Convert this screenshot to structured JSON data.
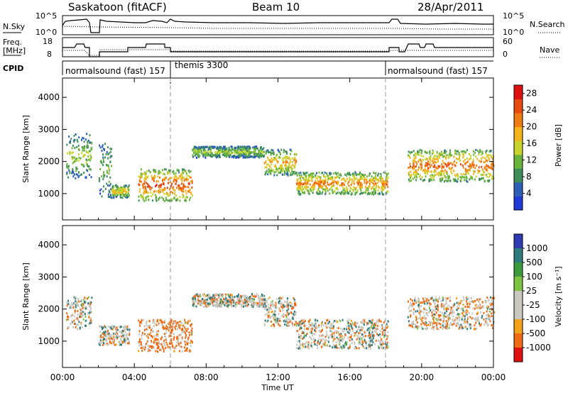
{
  "header": {
    "radar": "Saskatoon (fitACF)",
    "beam": "Beam 10",
    "date": "28/Apr/2011"
  },
  "noise_panel": {
    "left_label": "N.Sky",
    "right_label": "N.Search",
    "left_ticks": [
      "10^5",
      "10^0"
    ],
    "right_ticks": [
      "10^5",
      "10^0"
    ]
  },
  "freq_panel": {
    "left_label_1": "Freq.",
    "left_label_2": "[MHz]",
    "right_label": "Nave",
    "left_ticks": [
      "18",
      "8"
    ],
    "right_ticks": [
      "60",
      "0"
    ]
  },
  "cpid_panel": {
    "label": "CPID",
    "programs": [
      {
        "name": "normalsound (fast) 157",
        "start": 0,
        "end": 6
      },
      {
        "name": "themis 3300",
        "start": 6,
        "end": 18
      },
      {
        "name": "normalsound (fast) 157",
        "start": 18,
        "end": 24
      }
    ]
  },
  "colors": {
    "power": [
      "#1f3ad6",
      "#2e5fb8",
      "#3e8e5a",
      "#6ab43c",
      "#c8d42c",
      "#f2b41a",
      "#f07b12",
      "#e84a0f",
      "#e01010"
    ],
    "velocity": [
      "#2f3bb5",
      "#2f7a7a",
      "#3d9a3d",
      "#7cc441",
      "#c8c8c0",
      "#c8c8c0",
      "#f2a21a",
      "#f06a10",
      "#e01010"
    ]
  },
  "chart_data": [
    {
      "type": "heatmap",
      "title": "Power",
      "xlabel": "Time UT",
      "ylabel": "Slant Range [km]",
      "xlim": [
        0,
        24
      ],
      "ylim": [
        180,
        4600
      ],
      "x_ticks": [
        "00:00",
        "04:00",
        "08:00",
        "12:00",
        "16:00",
        "20:00",
        "00:00"
      ],
      "y_ticks": [
        "1000",
        "2000",
        "3000",
        "4000"
      ],
      "colorbar_label": "Power [dB]",
      "colorbar_ticks": [
        "4",
        "8",
        "12",
        "16",
        "20",
        "24",
        "28"
      ],
      "colorbar_range": [
        0,
        30
      ],
      "scatter_bands": [
        {
          "t0": 0.2,
          "t1": 1.6,
          "r0": 1500,
          "r1": 2900,
          "value": 14
        },
        {
          "t0": 2.0,
          "t1": 2.7,
          "r0": 900,
          "r1": 2600,
          "value": 12
        },
        {
          "t0": 2.7,
          "t1": 3.7,
          "r0": 900,
          "r1": 1300,
          "value": 18
        },
        {
          "t0": 4.2,
          "t1": 7.2,
          "r0": 800,
          "r1": 1800,
          "value": 26
        },
        {
          "t0": 7.2,
          "t1": 11.2,
          "r0": 2150,
          "r1": 2500,
          "value": 14
        },
        {
          "t0": 11.2,
          "t1": 13.0,
          "r0": 1600,
          "r1": 2400,
          "value": 20
        },
        {
          "t0": 13.0,
          "t1": 18.1,
          "r0": 1000,
          "r1": 1700,
          "value": 22
        },
        {
          "t0": 19.2,
          "t1": 24.0,
          "r0": 1400,
          "r1": 2400,
          "value": 24
        }
      ]
    },
    {
      "type": "heatmap",
      "title": "Velocity",
      "xlabel": "Time UT",
      "ylabel": "Slant Range [km]",
      "xlim": [
        0,
        24
      ],
      "ylim": [
        180,
        4600
      ],
      "x_ticks": [
        "00:00",
        "04:00",
        "08:00",
        "12:00",
        "16:00",
        "20:00",
        "00:00"
      ],
      "y_ticks": [
        "1000",
        "2000",
        "3000",
        "4000"
      ],
      "colorbar_label": "Velocity [m s⁻¹]",
      "colorbar_ticks": [
        "1000",
        "500",
        "100",
        "25",
        "-25",
        "-100",
        "-500",
        "-1000"
      ],
      "scatter_bands": [
        {
          "t0": 0.2,
          "t1": 1.6,
          "r0": 1400,
          "r1": 2400,
          "value": 0
        },
        {
          "t0": 2.0,
          "t1": 3.7,
          "r0": 900,
          "r1": 1500,
          "value": 0
        },
        {
          "t0": 4.2,
          "t1": 7.2,
          "r0": 700,
          "r1": 1700,
          "value": -200
        },
        {
          "t0": 7.2,
          "t1": 11.2,
          "r0": 2100,
          "r1": 2500,
          "value": 0
        },
        {
          "t0": 11.2,
          "t1": 13.0,
          "r0": 1500,
          "r1": 2400,
          "value": 0
        },
        {
          "t0": 13.0,
          "t1": 18.1,
          "r0": 800,
          "r1": 1700,
          "value": 0
        },
        {
          "t0": 19.2,
          "t1": 24.0,
          "r0": 1400,
          "r1": 2400,
          "value": -50
        }
      ]
    }
  ]
}
